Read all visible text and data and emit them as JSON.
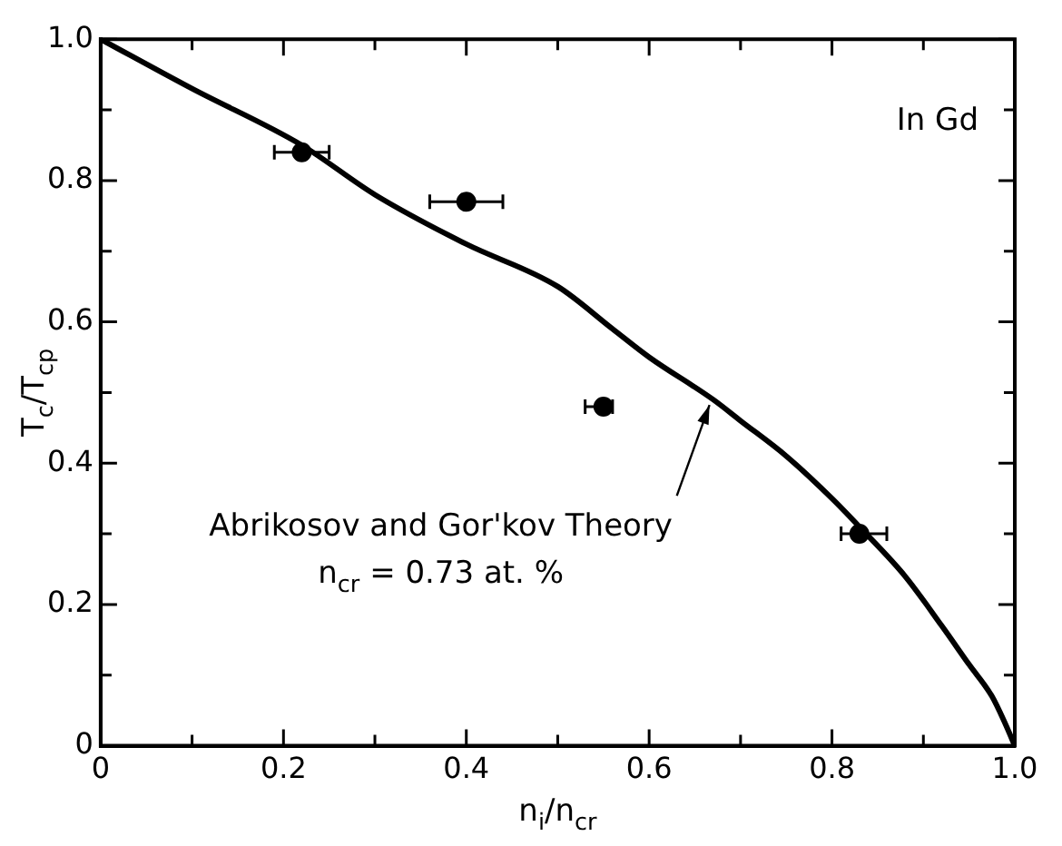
{
  "chart_data": {
    "type": "scatter",
    "xlabel": "n$_{i}$/n$_{cr}$",
    "ylabel": "T$_{c}$/T$_{cp}$",
    "xlim": [
      0,
      1
    ],
    "ylim": [
      0,
      1
    ],
    "xticks": [
      0,
      {
        "value": 0.1,
        "label": null
      },
      0.2,
      {
        "value": 0.3,
        "label": null
      },
      0.4,
      {
        "value": 0.5,
        "label": null
      },
      0.6,
      {
        "value": 0.7,
        "label": null
      },
      0.8,
      {
        "value": 0.9,
        "label": null
      },
      {
        "value": 1,
        "label": "1.0"
      }
    ],
    "yticks": [
      0,
      {
        "value": 0.1,
        "label": null
      },
      0.2,
      {
        "value": 0.3,
        "label": null
      },
      0.4,
      {
        "value": 0.5,
        "label": null
      },
      0.6,
      {
        "value": 0.7,
        "label": null
      },
      0.8,
      {
        "value": 0.9,
        "label": null
      },
      {
        "value": 1,
        "label": "1.0"
      }
    ],
    "grid": false,
    "legend": false,
    "series": [
      {
        "color": "#000000",
        "marker": "circle",
        "x": [
          0.22,
          0.4,
          0.55,
          0.83
        ],
        "values": [
          0.84,
          0.77,
          0.48,
          0.3
        ],
        "xerrors": [
          [
            0.19,
            0.25
          ],
          [
            0.36,
            0.44
          ],
          [
            0.53,
            0.56
          ],
          [
            0.81,
            0.86
          ]
        ]
      },
      {
        "type": "line",
        "color": "#000000",
        "marker": "none",
        "line_style": "solid",
        "x": [
          0,
          0.1,
          0.22,
          0.3,
          0.4,
          0.5,
          0.56,
          0.6,
          0.67,
          0.7,
          0.75,
          0.8,
          0.83,
          0.88,
          0.92,
          0.95,
          0.975,
          0.99,
          1
        ],
        "values": [
          1,
          0.93,
          0.85,
          0.78,
          0.71,
          0.65,
          0.59,
          0.55,
          0.49,
          0.46,
          0.41,
          0.35,
          0.31,
          0.24,
          0.17,
          0.115,
          0.07,
          0.03,
          0
        ]
      }
    ],
    "annotations": [
      "In Gd",
      {
        "text": "Abrikosov and Gor'kov Theory",
        "x": 0.67,
        "y": 0.49
      },
      "n$_{cr}$ = 0.73 at. %"
    ]
  }
}
